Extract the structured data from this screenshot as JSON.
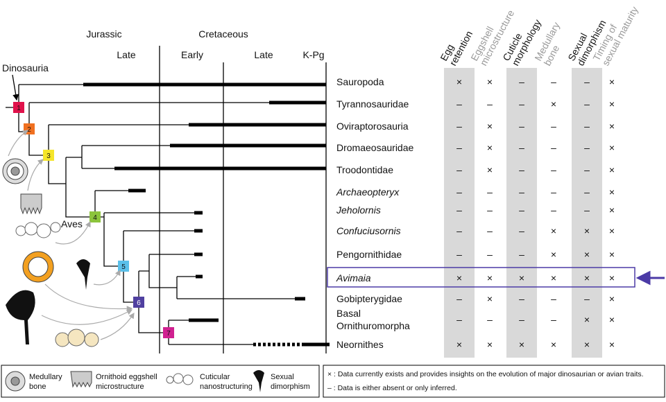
{
  "periods": {
    "jurassic": "Jurassic",
    "cretaceous": "Cretaceous",
    "late_jurassic": "Late",
    "early": "Early",
    "late": "Late",
    "kpg": "K-Pg"
  },
  "labels": {
    "dinosauria": "Dinosauria",
    "aves": "Aves"
  },
  "nodes": [
    {
      "label": "1",
      "color": "#e0124b"
    },
    {
      "label": "2",
      "color": "#f07020"
    },
    {
      "label": "3",
      "color": "#f5e52a"
    },
    {
      "label": "4",
      "color": "#8cc43c"
    },
    {
      "label": "5",
      "color": "#5bc0ea"
    },
    {
      "label": "6",
      "color": "#5040a0"
    },
    {
      "label": "7",
      "color": "#d02090"
    }
  ],
  "columns": [
    {
      "lines": [
        "Egg",
        "retention"
      ],
      "shaded": true
    },
    {
      "lines": [
        "Eggshell",
        "microstructure"
      ],
      "shaded": false
    },
    {
      "lines": [
        "Cuticle",
        "morphology"
      ],
      "shaded": true
    },
    {
      "lines": [
        "Medullary",
        "bone"
      ],
      "shaded": false
    },
    {
      "lines": [
        "Sexual",
        "dimorphism"
      ],
      "shaded": true
    },
    {
      "lines": [
        "Timing of",
        "sexual maturity"
      ],
      "shaded": false
    }
  ],
  "taxa": [
    {
      "lines": [
        "Sauropoda"
      ],
      "italic": false,
      "cells": [
        "×",
        "×",
        "–",
        "–",
        "–",
        "×"
      ]
    },
    {
      "lines": [
        "Tyrannosauridae"
      ],
      "italic": false,
      "cells": [
        "–",
        "–",
        "–",
        "×",
        "–",
        "×"
      ]
    },
    {
      "lines": [
        "Oviraptorosauria"
      ],
      "italic": false,
      "cells": [
        "–",
        "×",
        "–",
        "–",
        "–",
        "×"
      ]
    },
    {
      "lines": [
        "Dromaeosauridae"
      ],
      "italic": false,
      "cells": [
        "–",
        "×",
        "–",
        "–",
        "–",
        "×"
      ]
    },
    {
      "lines": [
        "Troodontidae"
      ],
      "italic": false,
      "cells": [
        "–",
        "×",
        "–",
        "–",
        "–",
        "×"
      ]
    },
    {
      "lines": [
        "Archaeopteryx"
      ],
      "italic": true,
      "cells": [
        "–",
        "–",
        "–",
        "–",
        "–",
        "×"
      ]
    },
    {
      "lines": [
        "Jeholornis"
      ],
      "italic": true,
      "cells": [
        "–",
        "–",
        "–",
        "–",
        "–",
        "×"
      ]
    },
    {
      "lines": [
        "Confuciusornis"
      ],
      "italic": true,
      "cells": [
        "–",
        "–",
        "–",
        "×",
        "×",
        "×"
      ]
    },
    {
      "lines": [
        "Pengornithidae"
      ],
      "italic": false,
      "cells": [
        "–",
        "–",
        "–",
        "×",
        "×",
        "×"
      ]
    },
    {
      "lines": [
        "Avimaia"
      ],
      "italic": true,
      "cells": [
        "×",
        "×",
        "×",
        "×",
        "×",
        "×"
      ],
      "highlight": true
    },
    {
      "lines": [
        "Gobipterygidae"
      ],
      "italic": false,
      "cells": [
        "–",
        "×",
        "–",
        "–",
        "–",
        "×"
      ]
    },
    {
      "lines": [
        "Basal",
        "Ornithuromorpha"
      ],
      "italic": false,
      "cells": [
        "–",
        "–",
        "–",
        "–",
        "×",
        "×"
      ]
    },
    {
      "lines": [
        "Neornithes"
      ],
      "italic": false,
      "cells": [
        "×",
        "×",
        "×",
        "×",
        "×",
        "×"
      ]
    }
  ],
  "legend": [
    {
      "lines": [
        "Medullary",
        "bone"
      ]
    },
    {
      "lines": [
        "Ornithoid eggshell",
        "microstructure"
      ]
    },
    {
      "lines": [
        "Cuticular",
        "nanostructuring"
      ]
    },
    {
      "lines": [
        "Sexual",
        "dimorphism"
      ]
    }
  ],
  "notes": [
    "× : Data currently exists and provides insights on the evolution of major dinosaurian or avian traits.",
    "– : Data is either absent or only inferred."
  ]
}
